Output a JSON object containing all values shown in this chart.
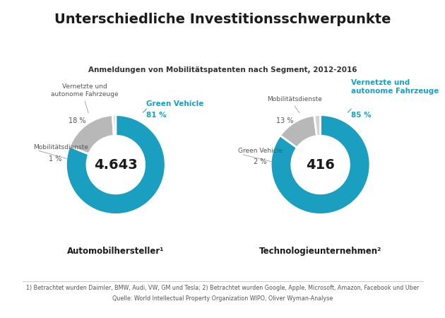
{
  "title": "Unterschiedliche Investitionsschwerpunkte",
  "subtitle": "Anmeldungen von Mobilitätspatenten nach Segment, 2012-2016",
  "chart1": {
    "label": "Automobilhersteller¹",
    "center_text": "4.643",
    "slices": [
      81,
      18,
      1
    ],
    "colors": [
      "#1a9fc0",
      "#b8b8b8",
      "#d4d4d4"
    ]
  },
  "chart2": {
    "label": "Technologieunternehmen²",
    "center_text": "416",
    "slices": [
      85,
      13,
      2
    ],
    "colors": [
      "#1a9fc0",
      "#b8b8b8",
      "#d4d4d4"
    ]
  },
  "footnote1": "1) Betrachtet wurden Daimler, BMW, Audi, VW, GM und Tesla; 2) Betrachtet wurden Google, Apple, Microsoft, Amazon, Facebook und Uber",
  "footnote2": "Quelle: World Intellectual Property Organization WIPO, Oliver Wyman-Analyse",
  "teal_color": "#1a9fc0",
  "dark_gray": "#555555",
  "bg_color": "#ffffff"
}
